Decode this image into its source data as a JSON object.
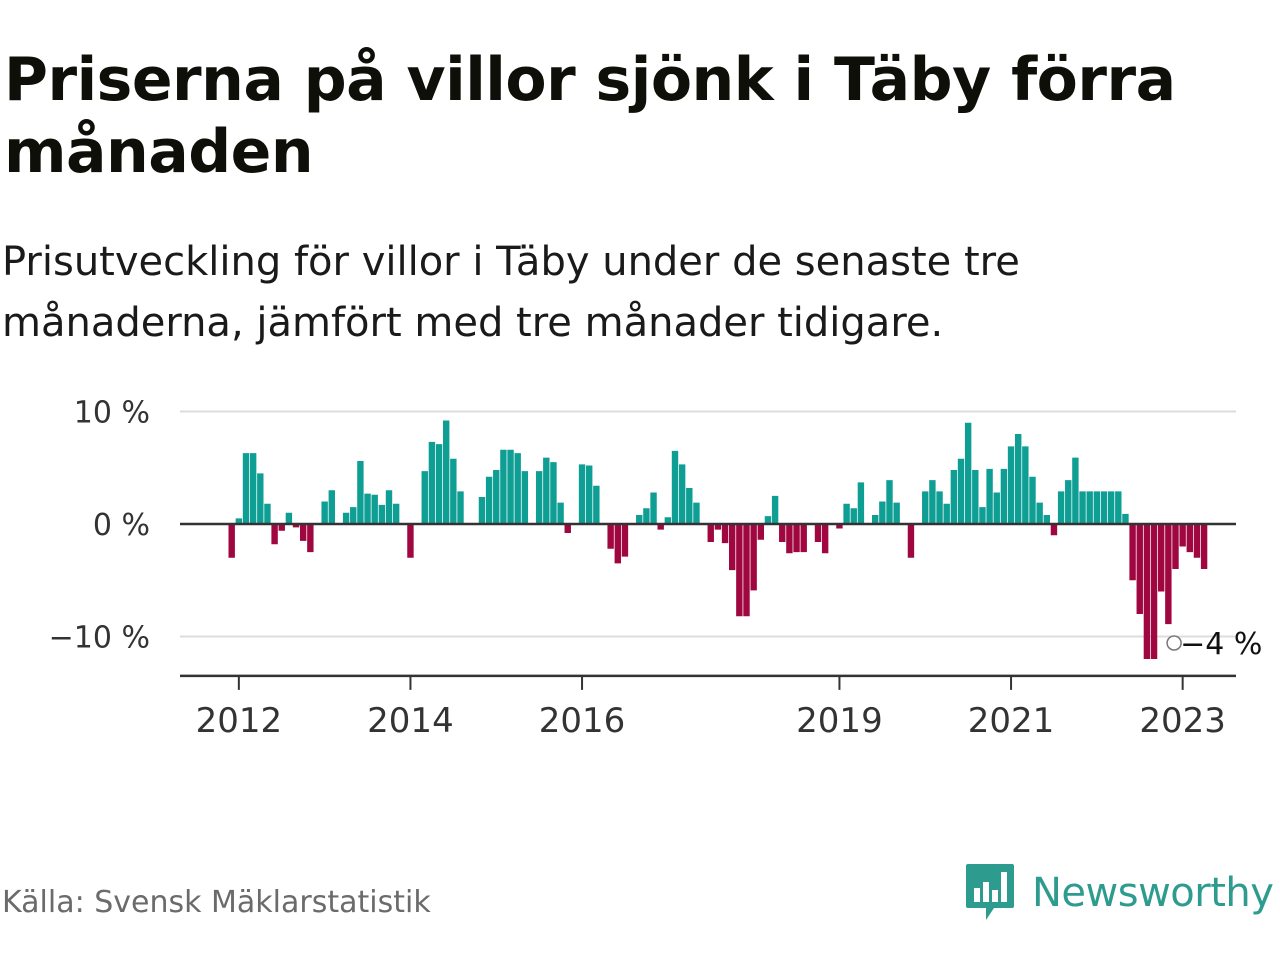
{
  "header": {
    "title": "Priserna på villor sjönk i Täby förra månaden",
    "subtitle": "Prisutveckling för villor i Täby under de senaste tre månaderna, jämfört med tre månader tidigare."
  },
  "footer": {
    "source": "Källa: Svensk Mäklarstatistik",
    "brand": "Newsworthy"
  },
  "colors": {
    "positive": "#0f9e94",
    "negative": "#a0063f",
    "brand": "#2e9b8f"
  },
  "chart_data": {
    "type": "bar",
    "ylim": [
      -13.5,
      10
    ],
    "y_ticks": [
      {
        "value": 10,
        "label": "10 %"
      },
      {
        "value": 0,
        "label": "0 %"
      },
      {
        "value": -10,
        "label": "−10 %"
      }
    ],
    "x_ticks": [
      {
        "year": 2012,
        "label": "2012"
      },
      {
        "year": 2014,
        "label": "2014"
      },
      {
        "year": 2016,
        "label": "2016"
      },
      {
        "year": 2019,
        "label": "2019"
      },
      {
        "year": 2021,
        "label": "2021"
      },
      {
        "year": 2023,
        "label": "2023"
      }
    ],
    "first_month": "2011-12",
    "last_value_label": "−4 %",
    "values": [
      -3,
      0.5,
      6.3,
      6.3,
      4.5,
      1.8,
      -1.8,
      -0.6,
      1,
      -0.3,
      -1.5,
      -2.5,
      0,
      2,
      3,
      0,
      1,
      1.5,
      5.6,
      2.7,
      2.6,
      1.7,
      3,
      1.8,
      0,
      -3,
      0,
      4.7,
      7.3,
      7.1,
      9.2,
      5.8,
      2.9,
      0,
      0,
      2.4,
      4.2,
      4.8,
      6.6,
      6.6,
      6.3,
      4.7,
      0,
      4.7,
      5.9,
      5.5,
      1.9,
      -0.8,
      0,
      5.3,
      5.2,
      3.4,
      0,
      -2.2,
      -3.5,
      -2.9,
      0,
      0.8,
      1.4,
      2.8,
      -0.5,
      0.6,
      6.5,
      5.3,
      3.2,
      1.9,
      0,
      -1.6,
      -0.5,
      -1.7,
      -4.1,
      -8.2,
      -8.2,
      -5.9,
      -1.4,
      0.7,
      2.5,
      -1.6,
      -2.6,
      -2.5,
      -2.5,
      0,
      -1.6,
      -2.6,
      0,
      -0.4,
      1.8,
      1.4,
      3.7,
      0,
      0.8,
      2,
      3.9,
      1.9,
      0,
      -3,
      0,
      2.9,
      3.9,
      2.9,
      1.8,
      4.8,
      5.8,
      9,
      4.8,
      1.5,
      4.9,
      2.8,
      4.9,
      6.9,
      8,
      6.9,
      4.2,
      1.9,
      0.8,
      -1,
      2.9,
      3.9,
      5.9,
      2.9,
      2.9,
      2.9,
      2.9,
      2.9,
      2.9,
      0.9,
      -5,
      -8,
      -12,
      -12,
      -6,
      -8.9,
      -4,
      -2,
      -2.5,
      -3,
      -4
    ]
  }
}
